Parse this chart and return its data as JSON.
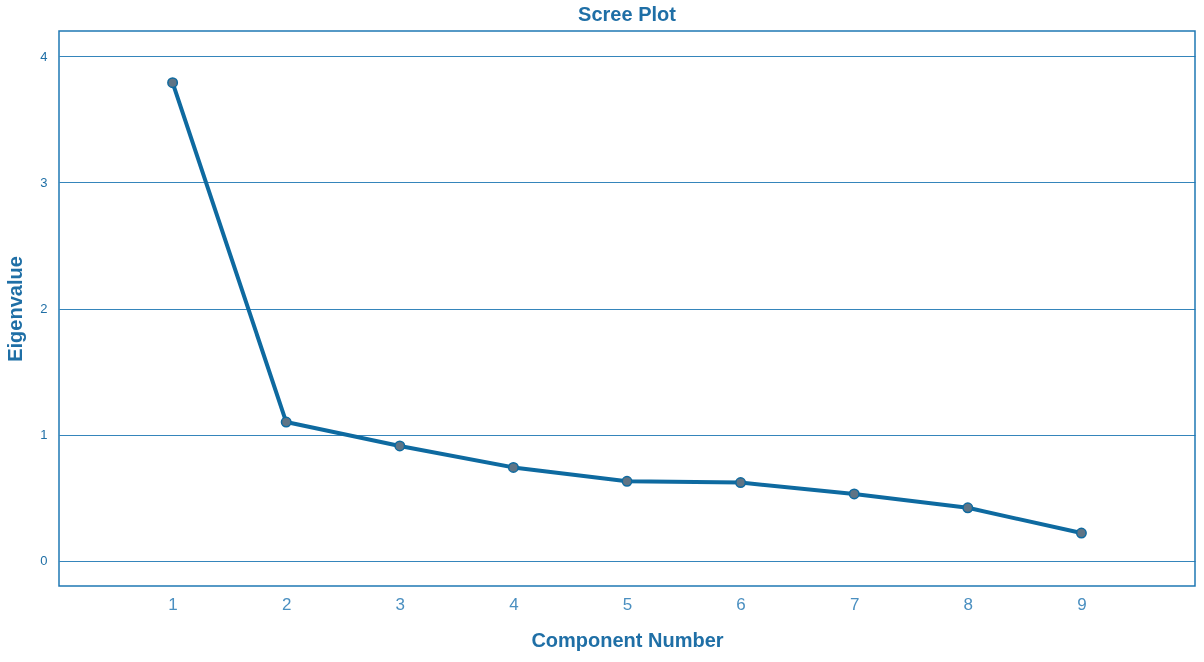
{
  "chart_data": {
    "type": "line",
    "title": "Scree Plot",
    "xlabel": "Component Number",
    "ylabel": "Eigenvalue",
    "x": [
      1,
      2,
      3,
      4,
      5,
      6,
      7,
      8,
      9
    ],
    "series": [
      {
        "color": "#0e6aa0",
        "values": [
          3.79,
          1.1,
          0.91,
          0.74,
          0.63,
          0.62,
          0.53,
          0.42,
          0.22
        ]
      }
    ],
    "xlim": [
      0,
      10
    ],
    "xticks": [
      1,
      2,
      3,
      4,
      5,
      6,
      7,
      8,
      9
    ],
    "ylim": [
      -0.2,
      4.2
    ],
    "yticks": [
      0,
      1,
      2,
      3,
      4
    ],
    "grid": "y",
    "marker": "circle",
    "line_style": "solid"
  }
}
